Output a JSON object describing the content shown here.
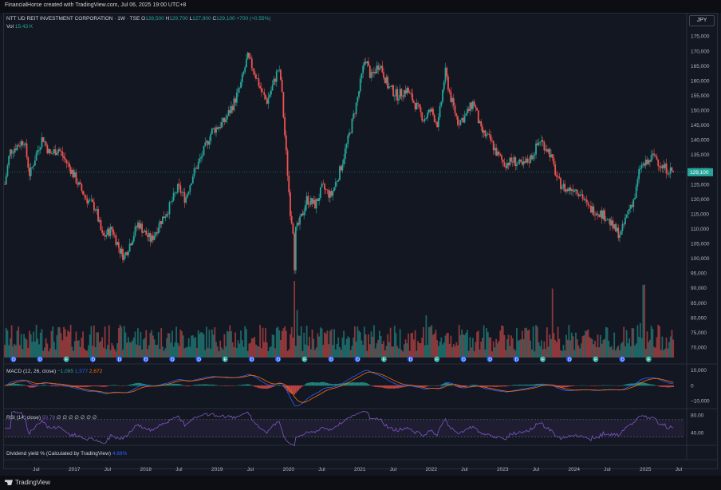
{
  "topbar": {
    "text": "FinancialHorse created with TradingView.com, Jul 06, 2025 19:00 UTC+8"
  },
  "currency": "JPY",
  "legend": {
    "symbol": "NTT UD REIT INVESTMENT CORPORATION · 1W · TSE",
    "o_label": "O",
    "o": "128,500",
    "h_label": "H",
    "h": "129,700",
    "l_label": "L",
    "l": "127,900",
    "c_label": "C",
    "c": "129,100",
    "change": "+700 (+0.55%)",
    "vol_label": "Vol",
    "vol": "15.43 K"
  },
  "macd": {
    "label": "MACD (12, 26, close)",
    "v1": "−1,095",
    "v2": "1,577",
    "v3": "2,672"
  },
  "rsi": {
    "label": "RSI (14, close)",
    "v1": "50.78",
    "extras": "∅ ∅ ∅ ∅ ∅ ∅ ∅"
  },
  "dividend": {
    "label": "Dividend yield % (Calculated by TradingView)",
    "value": "4.68%"
  },
  "footer": {
    "brand": "TradingView"
  },
  "colors": {
    "up": "#26a69a",
    "down": "#ef5350",
    "macd": "#2962ff",
    "signal": "#ff6d00",
    "rsi": "#7e57c2",
    "bg": "#131722"
  },
  "chart_data": {
    "type": "candlestick",
    "title": "NTT UD REIT INVESTMENT CORPORATION · 1W · TSE",
    "ylim": [
      66000,
      177000
    ],
    "y_ticks": [
      "175,000",
      "170,000",
      "165,000",
      "160,000",
      "155,000",
      "150,000",
      "145,000",
      "140,000",
      "135,000",
      "130,000",
      "125,000",
      "120,000",
      "115,000",
      "110,000",
      "105,000",
      "100,000",
      "95,000",
      "90,000",
      "85,000",
      "80,000",
      "75,000",
      "70,000"
    ],
    "x_ticks": [
      "Jul",
      "2017",
      "Jul",
      "2018",
      "Jul",
      "2019",
      "Jul",
      "2020",
      "Jul",
      "2021",
      "Jul",
      "2022",
      "Jul",
      "2023",
      "Jul",
      "2024",
      "Jul",
      "2025",
      "Jul"
    ],
    "x_tick_times": [
      2016.5,
      2017.0,
      2017.5,
      2018.0,
      2018.5,
      2019.0,
      2019.5,
      2020.0,
      2020.5,
      2021.0,
      2021.5,
      2022.0,
      2022.5,
      2023.0,
      2023.5,
      2024.0,
      2024.5,
      2025.0,
      2025.5
    ],
    "x_range": [
      2016.05,
      2025.57
    ],
    "last_price": "129,100",
    "last_value": 129100,
    "price_path": [
      [
        2016.05,
        125000
      ],
      [
        2016.12,
        136000
      ],
      [
        2016.22,
        138000
      ],
      [
        2016.32,
        140000
      ],
      [
        2016.4,
        128000
      ],
      [
        2016.5,
        136000
      ],
      [
        2016.58,
        141000
      ],
      [
        2016.68,
        135000
      ],
      [
        2016.8,
        137000
      ],
      [
        2016.9,
        133000
      ],
      [
        2017.0,
        129000
      ],
      [
        2017.1,
        124000
      ],
      [
        2017.2,
        120000
      ],
      [
        2017.32,
        117000
      ],
      [
        2017.42,
        107000
      ],
      [
        2017.55,
        110000
      ],
      [
        2017.66,
        103000
      ],
      [
        2017.72,
        100500
      ],
      [
        2017.82,
        106000
      ],
      [
        2017.92,
        112000
      ],
      [
        2018.0,
        109000
      ],
      [
        2018.1,
        106000
      ],
      [
        2018.22,
        112000
      ],
      [
        2018.35,
        117000
      ],
      [
        2018.48,
        124000
      ],
      [
        2018.58,
        120000
      ],
      [
        2018.68,
        128000
      ],
      [
        2018.8,
        134000
      ],
      [
        2018.95,
        143000
      ],
      [
        2019.12,
        146000
      ],
      [
        2019.25,
        152000
      ],
      [
        2019.35,
        158000
      ],
      [
        2019.45,
        168000
      ],
      [
        2019.55,
        163000
      ],
      [
        2019.65,
        156000
      ],
      [
        2019.72,
        153000
      ],
      [
        2019.8,
        158000
      ],
      [
        2019.88,
        164000
      ],
      [
        2019.92,
        160000
      ],
      [
        2019.96,
        146000
      ],
      [
        2020.05,
        116000
      ],
      [
        2020.1,
        108000
      ],
      [
        2020.18,
        112000
      ],
      [
        2020.28,
        120000
      ],
      [
        2020.4,
        118000
      ],
      [
        2020.5,
        124000
      ],
      [
        2020.62,
        121000
      ],
      [
        2020.75,
        130000
      ],
      [
        2020.88,
        142000
      ],
      [
        2021.0,
        155000
      ],
      [
        2021.1,
        168000
      ],
      [
        2021.18,
        161000
      ],
      [
        2021.3,
        166000
      ],
      [
        2021.42,
        158000
      ],
      [
        2021.55,
        155000
      ],
      [
        2021.68,
        157000
      ],
      [
        2021.8,
        152000
      ],
      [
        2021.92,
        147000
      ],
      [
        2022.02,
        150000
      ],
      [
        2022.12,
        145000
      ],
      [
        2022.22,
        163000
      ],
      [
        2022.3,
        154000
      ],
      [
        2022.4,
        146000
      ],
      [
        2022.5,
        148000
      ],
      [
        2022.62,
        153000
      ],
      [
        2022.72,
        143000
      ],
      [
        2022.85,
        140000
      ],
      [
        2022.95,
        135000
      ],
      [
        2023.05,
        132000
      ],
      [
        2023.18,
        133000
      ],
      [
        2023.3,
        131000
      ],
      [
        2023.42,
        134000
      ],
      [
        2023.55,
        140000
      ],
      [
        2023.68,
        136000
      ],
      [
        2023.8,
        126000
      ],
      [
        2023.92,
        123000
      ],
      [
        2024.02,
        124000
      ],
      [
        2024.12,
        122000
      ],
      [
        2024.22,
        117000
      ],
      [
        2024.35,
        116000
      ],
      [
        2024.48,
        114000
      ],
      [
        2024.58,
        110000
      ],
      [
        2024.68,
        108000
      ],
      [
        2024.78,
        116000
      ],
      [
        2024.88,
        121000
      ],
      [
        2024.95,
        131000
      ],
      [
        2025.05,
        132000
      ],
      [
        2025.15,
        135000
      ],
      [
        2025.25,
        131000
      ],
      [
        2025.35,
        130000
      ],
      [
        2025.42,
        129100
      ]
    ],
    "volume_spikes": [
      [
        2020.1,
        1.0
      ],
      [
        2020.14,
        0.62
      ],
      [
        2021.95,
        0.55
      ],
      [
        2022.0,
        0.4
      ],
      [
        2023.72,
        0.9
      ],
      [
        2025.0,
        0.95
      ],
      [
        2016.4,
        0.35
      ],
      [
        2019.8,
        0.3
      ],
      [
        2022.25,
        0.32
      ],
      [
        2024.95,
        0.45
      ]
    ],
    "dividend_markers": [
      "D",
      "D",
      "E",
      "D",
      "D",
      "D",
      "D",
      "D",
      "E",
      "D",
      "D",
      "E",
      "D",
      "D",
      "E",
      "D",
      "E",
      "D",
      "D",
      "D",
      "E",
      "D",
      "E",
      "D",
      "E"
    ],
    "macd_ylim": [
      -12000,
      12000
    ],
    "macd_ticks": [
      "10,000",
      "0",
      "−10,000"
    ],
    "macd_tick_values": [
      10000,
      0,
      -10000
    ],
    "rsi_ticks": [
      "80.00",
      "40.00"
    ],
    "rsi_tick_values": [
      80,
      40
    ],
    "rsi_ylim": [
      20,
      90
    ]
  }
}
